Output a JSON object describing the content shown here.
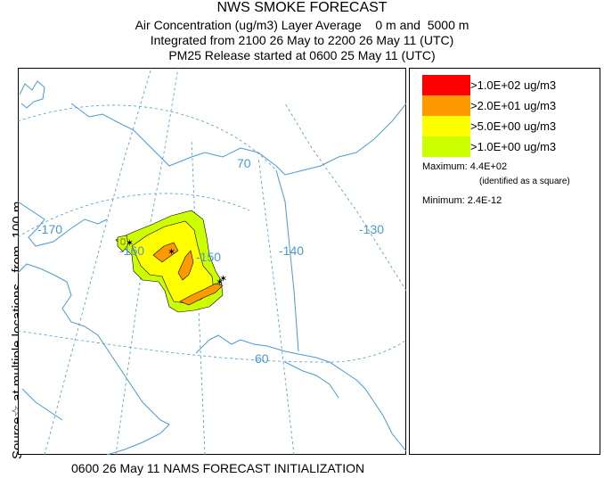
{
  "header": {
    "title": "NWS SMOKE FORECAST",
    "line2": "Air Concentration (ug/m3) Layer Average    0 m and  5000 m",
    "line3": "Integrated from 2100 26 May to 2200 26 May 11 (UTC)",
    "line4": "PM25 Release started at 0600 25 May 11 (UTC)"
  },
  "side_label": "Source☆ at multiple locations   from  100 m",
  "map": {
    "grid_labels": [
      "-170",
      "-160",
      "-150",
      "-140",
      "-130",
      "70",
      "60"
    ],
    "colors": {
      "coast": "#4a9ad0",
      "grid": "#4a9ad0",
      "label": "#4a9ad0"
    }
  },
  "legend": {
    "items": [
      {
        "label": ">1.0E+02 ug/m3",
        "color": "#ff0000"
      },
      {
        "label": ">2.0E+01 ug/m3",
        "color": "#ff9900"
      },
      {
        "label": ">5.0E+00 ug/m3",
        "color": "#ffff00"
      },
      {
        "label": ">1.0E+00 ug/m3",
        "color": "#ccff00"
      }
    ],
    "maximum": "Maximum: 4.4E+02",
    "maximum_note": "(identified as a square)",
    "minimum": "Minimum: 2.4E-12"
  },
  "footer": "0600 26 May 11 NAMS FORECAST INITIALIZATION"
}
